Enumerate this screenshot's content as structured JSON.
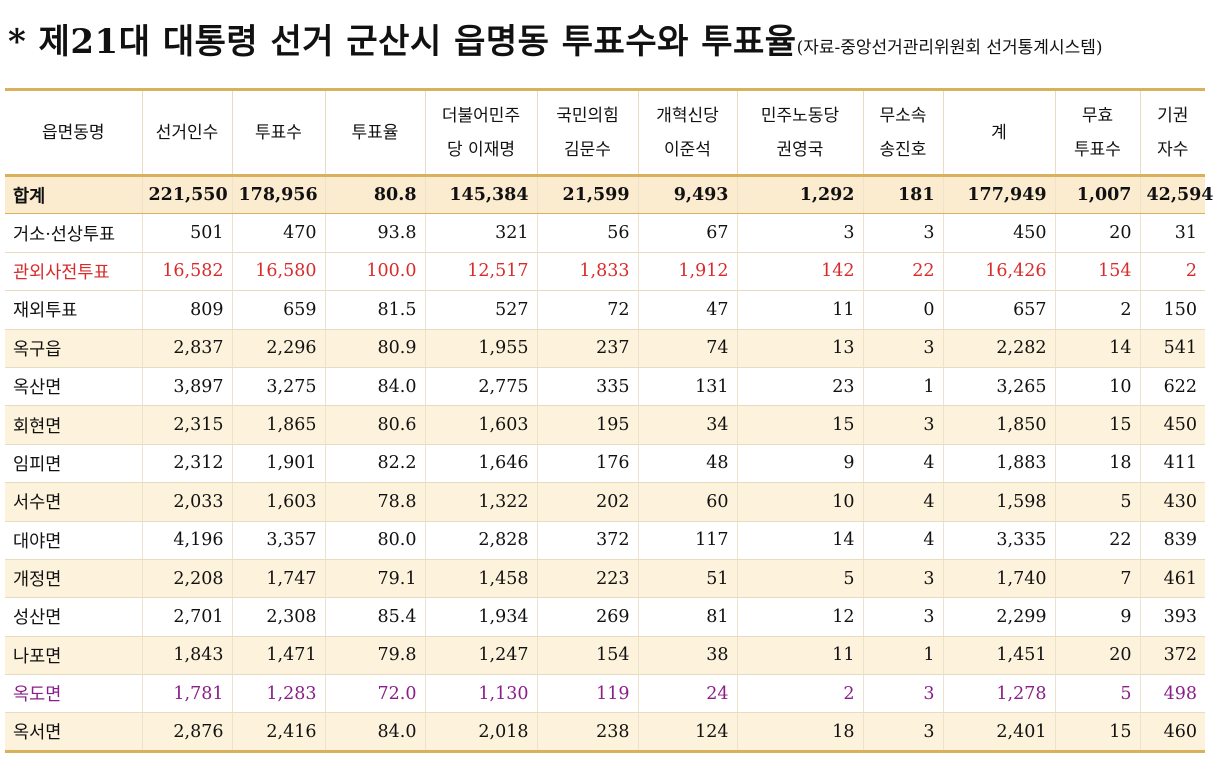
{
  "title": {
    "main": "* 제21대 대통령 선거 군산시 읍명동 투표수와 투표율",
    "source": "(자료-중앙선거관리위원회 선거통계시스템)"
  },
  "colors": {
    "accent_border": "#d9b15c",
    "band": "#fdf2dc",
    "red_row": "#d92b2b",
    "purple_row": "#8a1e8a"
  },
  "table": {
    "headers": [
      [
        "읍면동명"
      ],
      [
        "선거인수"
      ],
      [
        "투표수"
      ],
      [
        "투표율"
      ],
      [
        "더불어민주",
        "당 이재명"
      ],
      [
        "국민의힘",
        "김문수"
      ],
      [
        "개혁신당",
        "이준석"
      ],
      [
        "민주노동당",
        "권영국"
      ],
      [
        "무소속",
        "송진호"
      ],
      [
        "계"
      ],
      [
        "무효",
        "투표수"
      ],
      [
        "기권",
        "자수"
      ]
    ],
    "rows": [
      {
        "style": "total",
        "cells": [
          "합계",
          "221,550",
          "178,956",
          "80.8",
          "145,384",
          "21,599",
          "9,493",
          "1,292",
          "181",
          "177,949",
          "1,007",
          "42,594"
        ]
      },
      {
        "style": "plain",
        "cells": [
          "거소·선상투표",
          "501",
          "470",
          "93.8",
          "321",
          "56",
          "67",
          "3",
          "3",
          "450",
          "20",
          "31"
        ]
      },
      {
        "style": "red",
        "cells": [
          "관외사전투표",
          "16,582",
          "16,580",
          "100.0",
          "12,517",
          "1,833",
          "1,912",
          "142",
          "22",
          "16,426",
          "154",
          "2"
        ]
      },
      {
        "style": "plain",
        "cells": [
          "재외투표",
          "809",
          "659",
          "81.5",
          "527",
          "72",
          "47",
          "11",
          "0",
          "657",
          "2",
          "150"
        ]
      },
      {
        "style": "band",
        "cells": [
          "옥구읍",
          "2,837",
          "2,296",
          "80.9",
          "1,955",
          "237",
          "74",
          "13",
          "3",
          "2,282",
          "14",
          "541"
        ]
      },
      {
        "style": "plain",
        "cells": [
          "옥산면",
          "3,897",
          "3,275",
          "84.0",
          "2,775",
          "335",
          "131",
          "23",
          "1",
          "3,265",
          "10",
          "622"
        ]
      },
      {
        "style": "band",
        "cells": [
          "회현면",
          "2,315",
          "1,865",
          "80.6",
          "1,603",
          "195",
          "34",
          "15",
          "3",
          "1,850",
          "15",
          "450"
        ]
      },
      {
        "style": "plain",
        "cells": [
          "임피면",
          "2,312",
          "1,901",
          "82.2",
          "1,646",
          "176",
          "48",
          "9",
          "4",
          "1,883",
          "18",
          "411"
        ]
      },
      {
        "style": "band",
        "cells": [
          "서수면",
          "2,033",
          "1,603",
          "78.8",
          "1,322",
          "202",
          "60",
          "10",
          "4",
          "1,598",
          "5",
          "430"
        ]
      },
      {
        "style": "plain",
        "cells": [
          "대야면",
          "4,196",
          "3,357",
          "80.0",
          "2,828",
          "372",
          "117",
          "14",
          "4",
          "3,335",
          "22",
          "839"
        ]
      },
      {
        "style": "band",
        "cells": [
          "개정면",
          "2,208",
          "1,747",
          "79.1",
          "1,458",
          "223",
          "51",
          "5",
          "3",
          "1,740",
          "7",
          "461"
        ]
      },
      {
        "style": "plain",
        "cells": [
          "성산면",
          "2,701",
          "2,308",
          "85.4",
          "1,934",
          "269",
          "81",
          "12",
          "3",
          "2,299",
          "9",
          "393"
        ]
      },
      {
        "style": "band",
        "cells": [
          "나포면",
          "1,843",
          "1,471",
          "79.8",
          "1,247",
          "154",
          "38",
          "11",
          "1",
          "1,451",
          "20",
          "372"
        ]
      },
      {
        "style": "purple",
        "cells": [
          "옥도면",
          "1,781",
          "1,283",
          "72.0",
          "1,130",
          "119",
          "24",
          "2",
          "3",
          "1,278",
          "5",
          "498"
        ]
      },
      {
        "style": "band",
        "cells": [
          "옥서면",
          "2,876",
          "2,416",
          "84.0",
          "2,018",
          "238",
          "124",
          "18",
          "3",
          "2,401",
          "15",
          "460"
        ]
      }
    ]
  }
}
